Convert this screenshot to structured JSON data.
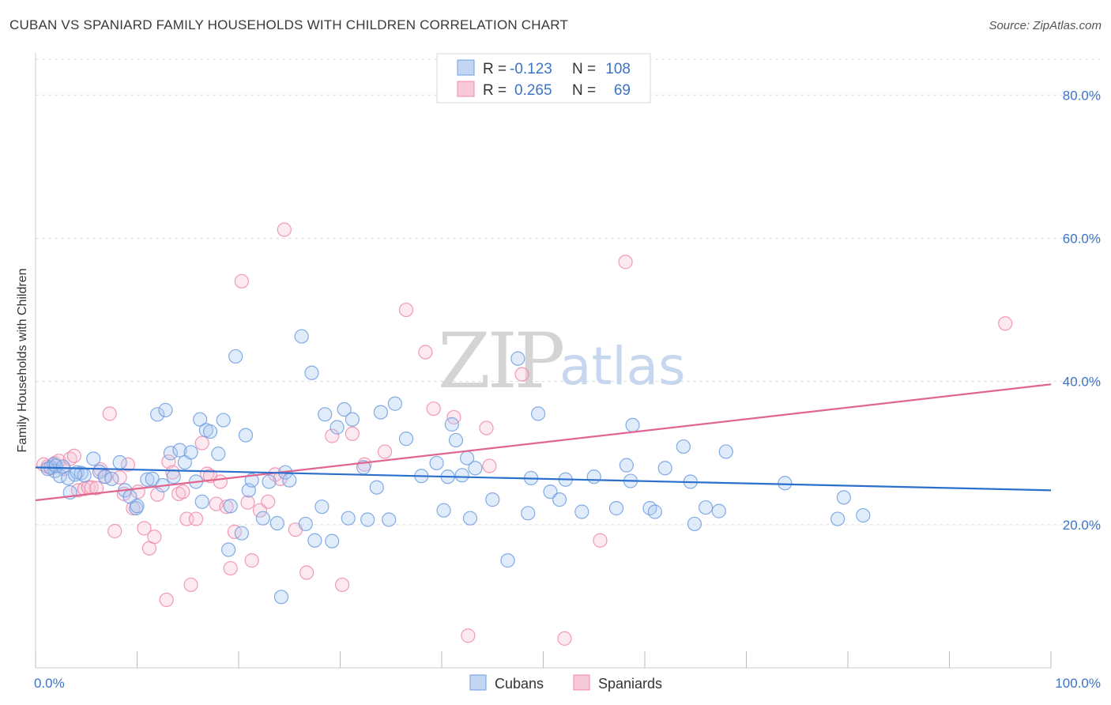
{
  "title": "CUBAN VS SPANIARD FAMILY HOUSEHOLDS WITH CHILDREN CORRELATION CHART",
  "source": "Source: ZipAtlas.com",
  "colors": {
    "cubans": "#6f9ee0",
    "cubans_fill": "#aac8f0",
    "spaniards": "#ee8aab",
    "spaniards_fill": "#f7c3d4",
    "cubans_line": "#2b6fcc",
    "spaniards_line": "#e06690",
    "tick_text": "#3a73c8"
  },
  "legend": {
    "rows": [
      {
        "r_label": "R =",
        "r_value": "-0.123",
        "n_label": "N =",
        "n_value": "108"
      },
      {
        "r_label": "R =",
        "r_value": "0.265",
        "n_label": "N =",
        "n_value": "69"
      }
    ]
  },
  "watermark": {
    "zip": "ZIP",
    "atlas": "atlas"
  },
  "chart_data": {
    "type": "scatter",
    "title": "CUBAN VS SPANIARD FAMILY HOUSEHOLDS WITH CHILDREN CORRELATION CHART",
    "ylabel": "Family Households with Children",
    "xlabel": "",
    "xlim": [
      0,
      100
    ],
    "ylim": [
      0,
      85
    ],
    "x_tick_labels": [
      "0.0%",
      "100.0%"
    ],
    "y_ticks": [
      20,
      40,
      60,
      80
    ],
    "y_tick_labels": [
      "20.0%",
      "40.0%",
      "60.0%",
      "80.0%"
    ],
    "grid": true,
    "legend_position": "top-center",
    "series": [
      {
        "name": "Cubans",
        "trend": {
          "x": [
            0,
            100
          ],
          "y": [
            28.0,
            24.8
          ]
        },
        "points": [
          [
            1.5,
            28.0
          ],
          [
            1.8,
            28.4
          ],
          [
            1.9,
            27.5
          ],
          [
            2.4,
            26.8
          ],
          [
            3.2,
            26.5
          ],
          [
            3.4,
            24.5
          ],
          [
            4.1,
            27.3
          ],
          [
            4.5,
            27.2
          ],
          [
            4.8,
            26.9
          ],
          [
            5.7,
            29.2
          ],
          [
            6.3,
            27.4
          ],
          [
            6.8,
            26.7
          ],
          [
            7.5,
            26.4
          ],
          [
            8.3,
            28.7
          ],
          [
            8.8,
            24.8
          ],
          [
            9.3,
            23.9
          ],
          [
            9.9,
            22.3
          ],
          [
            10.0,
            22.6
          ],
          [
            11.0,
            26.3
          ],
          [
            11.5,
            26.4
          ],
          [
            12.0,
            35.4
          ],
          [
            12.5,
            25.5
          ],
          [
            12.8,
            36.0
          ],
          [
            13.3,
            30.0
          ],
          [
            13.6,
            26.7
          ],
          [
            14.2,
            30.4
          ],
          [
            14.7,
            28.7
          ],
          [
            15.3,
            30.1
          ],
          [
            15.8,
            26.0
          ],
          [
            16.2,
            34.7
          ],
          [
            16.4,
            23.2
          ],
          [
            16.8,
            33.2
          ],
          [
            17.2,
            33.0
          ],
          [
            18.0,
            29.9
          ],
          [
            18.5,
            34.6
          ],
          [
            19.0,
            16.5
          ],
          [
            19.2,
            22.6
          ],
          [
            19.7,
            43.5
          ],
          [
            20.3,
            18.8
          ],
          [
            20.7,
            32.5
          ],
          [
            21.0,
            24.8
          ],
          [
            21.3,
            26.2
          ],
          [
            22.4,
            20.9
          ],
          [
            23.0,
            26.0
          ],
          [
            23.8,
            20.2
          ],
          [
            24.2,
            9.9
          ],
          [
            24.6,
            27.3
          ],
          [
            25.0,
            26.2
          ],
          [
            26.2,
            46.3
          ],
          [
            26.6,
            20.1
          ],
          [
            27.2,
            41.2
          ],
          [
            27.5,
            17.8
          ],
          [
            28.2,
            22.5
          ],
          [
            28.5,
            35.4
          ],
          [
            29.2,
            17.7
          ],
          [
            29.7,
            33.6
          ],
          [
            30.4,
            36.1
          ],
          [
            30.8,
            20.9
          ],
          [
            31.2,
            34.7
          ],
          [
            32.3,
            28.0
          ],
          [
            32.7,
            20.7
          ],
          [
            33.6,
            25.2
          ],
          [
            34.0,
            35.7
          ],
          [
            34.8,
            20.7
          ],
          [
            35.4,
            36.9
          ],
          [
            36.5,
            32.0
          ],
          [
            38.0,
            26.8
          ],
          [
            39.5,
            28.6
          ],
          [
            40.2,
            22.0
          ],
          [
            40.6,
            26.7
          ],
          [
            41.0,
            34.0
          ],
          [
            41.4,
            31.8
          ],
          [
            42.0,
            26.9
          ],
          [
            42.5,
            29.3
          ],
          [
            42.8,
            20.9
          ],
          [
            43.3,
            27.9
          ],
          [
            45.0,
            23.5
          ],
          [
            46.5,
            15.0
          ],
          [
            47.5,
            43.2
          ],
          [
            48.5,
            21.6
          ],
          [
            48.8,
            26.5
          ],
          [
            49.5,
            35.5
          ],
          [
            50.7,
            24.6
          ],
          [
            51.6,
            23.5
          ],
          [
            52.2,
            26.3
          ],
          [
            53.8,
            21.8
          ],
          [
            55.0,
            26.7
          ],
          [
            57.2,
            22.3
          ],
          [
            58.2,
            28.3
          ],
          [
            58.6,
            26.1
          ],
          [
            58.8,
            33.9
          ],
          [
            60.5,
            22.3
          ],
          [
            61.0,
            21.8
          ],
          [
            62.0,
            27.9
          ],
          [
            63.8,
            30.9
          ],
          [
            64.5,
            26.0
          ],
          [
            64.9,
            20.1
          ],
          [
            66.0,
            22.4
          ],
          [
            67.3,
            21.9
          ],
          [
            68.0,
            30.2
          ],
          [
            73.8,
            25.8
          ],
          [
            79.0,
            20.8
          ],
          [
            79.6,
            23.8
          ],
          [
            81.5,
            21.3
          ],
          [
            1.2,
            27.8
          ],
          [
            2.0,
            28.2
          ],
          [
            2.7,
            28.1
          ],
          [
            3.9,
            27.0
          ]
        ]
      },
      {
        "name": "Spaniards",
        "trend": {
          "x": [
            0,
            100
          ],
          "y": [
            23.4,
            39.6
          ]
        },
        "points": [
          [
            0.8,
            28.4
          ],
          [
            1.2,
            28.1
          ],
          [
            1.5,
            27.9
          ],
          [
            1.9,
            28.6
          ],
          [
            2.3,
            28.9
          ],
          [
            2.8,
            27.8
          ],
          [
            3.4,
            29.2
          ],
          [
            3.8,
            29.6
          ],
          [
            4.2,
            24.8
          ],
          [
            4.8,
            25.0
          ],
          [
            5.2,
            25.2
          ],
          [
            5.5,
            25.2
          ],
          [
            6.0,
            25.1
          ],
          [
            6.4,
            27.7
          ],
          [
            6.9,
            26.7
          ],
          [
            7.3,
            35.5
          ],
          [
            7.8,
            19.1
          ],
          [
            8.3,
            26.6
          ],
          [
            8.7,
            24.3
          ],
          [
            9.1,
            28.4
          ],
          [
            9.6,
            22.3
          ],
          [
            10.1,
            24.6
          ],
          [
            10.7,
            19.5
          ],
          [
            11.2,
            16.7
          ],
          [
            11.7,
            18.3
          ],
          [
            12.0,
            24.2
          ],
          [
            12.9,
            9.5
          ],
          [
            13.1,
            28.8
          ],
          [
            13.5,
            27.3
          ],
          [
            14.1,
            24.3
          ],
          [
            14.5,
            24.6
          ],
          [
            14.9,
            20.8
          ],
          [
            15.3,
            11.6
          ],
          [
            15.8,
            20.8
          ],
          [
            16.4,
            31.4
          ],
          [
            16.9,
            27.1
          ],
          [
            17.2,
            26.8
          ],
          [
            17.8,
            22.9
          ],
          [
            18.2,
            26.0
          ],
          [
            18.8,
            22.5
          ],
          [
            19.2,
            13.9
          ],
          [
            19.6,
            19.0
          ],
          [
            20.3,
            54.0
          ],
          [
            20.9,
            23.1
          ],
          [
            21.3,
            15.0
          ],
          [
            22.1,
            22.0
          ],
          [
            22.9,
            23.2
          ],
          [
            23.6,
            27.0
          ],
          [
            24.1,
            26.4
          ],
          [
            24.5,
            61.2
          ],
          [
            25.6,
            19.3
          ],
          [
            26.7,
            13.3
          ],
          [
            29.2,
            32.4
          ],
          [
            30.2,
            11.6
          ],
          [
            31.2,
            32.7
          ],
          [
            32.4,
            28.4
          ],
          [
            34.4,
            30.2
          ],
          [
            36.5,
            50.0
          ],
          [
            38.4,
            44.1
          ],
          [
            39.2,
            36.2
          ],
          [
            41.2,
            35.0
          ],
          [
            42.6,
            4.5
          ],
          [
            44.4,
            33.5
          ],
          [
            44.7,
            28.2
          ],
          [
            47.9,
            41.0
          ],
          [
            52.1,
            4.1
          ],
          [
            55.6,
            17.8
          ],
          [
            58.1,
            56.7
          ],
          [
            95.5,
            48.1
          ]
        ]
      }
    ]
  },
  "bottom_legend": {
    "cubans": "Cubans",
    "spaniards": "Spaniards"
  }
}
